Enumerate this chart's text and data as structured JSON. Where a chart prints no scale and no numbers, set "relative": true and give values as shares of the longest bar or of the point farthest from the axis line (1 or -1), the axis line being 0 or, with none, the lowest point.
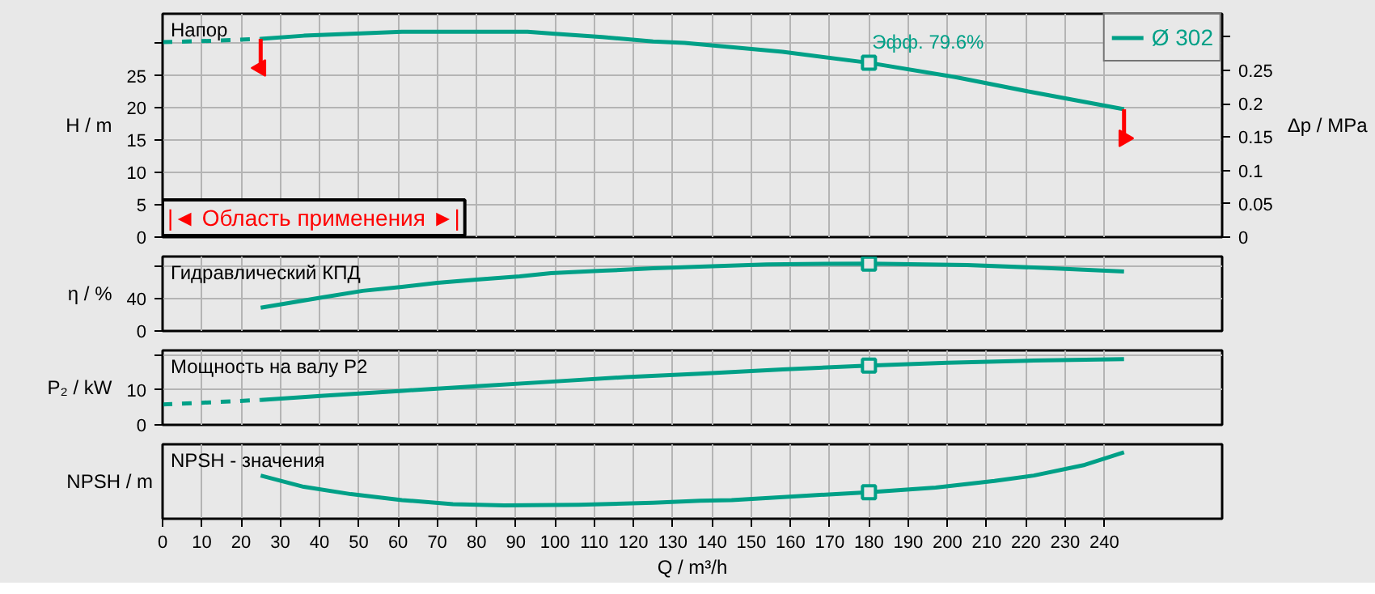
{
  "chart_data": [
    {
      "type": "line",
      "title": "Напор",
      "ylabel": "H / m",
      "y2label": "Δp / MPa",
      "xlim": [
        0,
        270
      ],
      "xticks": [
        0,
        10,
        20,
        30,
        40,
        50,
        60,
        70,
        80,
        90,
        100,
        110,
        120,
        130,
        140,
        150,
        160,
        170,
        180,
        190,
        200,
        210,
        220,
        230,
        240
      ],
      "ylim": [
        0,
        34.6
      ],
      "yticks": [
        0,
        5,
        10,
        15,
        20,
        25,
        {
          "value": 30,
          "label": null
        }
      ],
      "y2lim": [
        0,
        0.335
      ],
      "y2ticks": [
        0,
        0.05,
        0.1,
        0.15,
        0.2,
        0.25,
        {
          "value": 0.3,
          "label": null
        }
      ],
      "tick_labels": "y",
      "grid": true,
      "legend": "top right",
      "annotations": [
        {
          "text": "Эфф.  79.6%",
          "x": 180,
          "y": 27.0
        },
        "|◄ Область применения ►|"
      ],
      "series": [
        {
          "name": "Ø 302",
          "color": "#00a087",
          "x": [
            25,
            36,
            48,
            61,
            80,
            93,
            100,
            112,
            125,
            133,
            158,
            180,
            202,
            222,
            245
          ],
          "values": [
            30.7,
            31.2,
            31.5,
            31.8,
            31.8,
            31.8,
            31.5,
            31.0,
            30.3,
            30.1,
            28.7,
            27.0,
            24.8,
            22.4,
            19.8
          ]
        },
        {
          "color": "#00a087",
          "line_style": "dashed",
          "x": [
            0,
            12,
            25
          ],
          "values": [
            30.2,
            30.4,
            30.7
          ]
        },
        {
          "type": "scatter",
          "marker": "square",
          "color": "#00a087",
          "x": [
            180
          ],
          "values": [
            27.0
          ]
        },
        {
          "color": "#ff0000",
          "marker": "triangle",
          "x": [
            25,
            25
          ],
          "values": [
            30.7,
            26.2
          ]
        },
        {
          "color": "#ff0000",
          "marker": "triangle",
          "x": [
            245,
            245
          ],
          "values": [
            19.8,
            15.3
          ]
        }
      ]
    },
    {
      "type": "line",
      "title": "Гидравлический КПД",
      "ylabel": "η / %",
      "xlim": [
        0,
        270
      ],
      "xticks": [
        0,
        10,
        20,
        30,
        40,
        50,
        60,
        70,
        80,
        90,
        100,
        110,
        120,
        130,
        140,
        150,
        160,
        170,
        180,
        190,
        200,
        210,
        220,
        230,
        240
      ],
      "ylim": [
        0,
        92.7
      ],
      "yticks": [
        0,
        40,
        {
          "value": 80,
          "label": null
        }
      ],
      "tick_labels": "y",
      "grid": true,
      "series": [
        {
          "color": "#00a087",
          "x": [
            25,
            41,
            51,
            61,
            70,
            80,
            91,
            99,
            112,
            125,
            137,
            154,
            180,
            205,
            222,
            245
          ],
          "values": [
            29,
            42,
            50,
            55,
            60,
            64,
            68,
            72,
            75,
            78,
            80,
            83,
            84,
            82,
            79,
            74
          ]
        },
        {
          "type": "scatter",
          "marker": "square",
          "color": "#00a087",
          "x": [
            180
          ],
          "values": [
            84
          ]
        }
      ]
    },
    {
      "type": "line",
      "title": "Мощность на валу P2",
      "ylabel": "P₂ / kW",
      "xlim": [
        0,
        270
      ],
      "xticks": [
        0,
        10,
        20,
        30,
        40,
        50,
        60,
        70,
        80,
        90,
        100,
        110,
        120,
        130,
        140,
        150,
        160,
        170,
        180,
        190,
        200,
        210,
        220,
        230,
        240
      ],
      "ylim": [
        0,
        21.2
      ],
      "yticks": [
        0,
        10,
        {
          "value": 20,
          "label": null
        }
      ],
      "tick_labels": "y",
      "grid": true,
      "series": [
        {
          "color": "#00a087",
          "line_style": "dashed",
          "x": [
            0,
            12,
            25
          ],
          "values": [
            5.8,
            6.4,
            7.1
          ]
        },
        {
          "color": "#00a087",
          "x": [
            25,
            41,
            61,
            80,
            99,
            118,
            137,
            158,
            180,
            200,
            222,
            245
          ],
          "values": [
            7.1,
            8.3,
            9.7,
            11.0,
            12.3,
            13.6,
            14.6,
            15.8,
            16.9,
            17.7,
            18.3,
            18.7
          ]
        },
        {
          "type": "scatter",
          "marker": "square",
          "color": "#00a087",
          "x": [
            180
          ],
          "values": [
            16.9
          ]
        }
      ]
    },
    {
      "type": "line",
      "title": "NPSH - значения",
      "ylabel": "NPSH / m",
      "xlabel": "Q / m³/h",
      "relative": true,
      "xlim": [
        0,
        270
      ],
      "xticks": [
        0,
        10,
        20,
        30,
        40,
        50,
        60,
        70,
        80,
        90,
        100,
        110,
        120,
        130,
        140,
        150,
        160,
        170,
        180,
        190,
        200,
        210,
        220,
        230,
        240
      ],
      "tick_labels": "x",
      "grid": "x",
      "series": [
        {
          "color": "#00a087",
          "x": [
            25,
            36,
            48,
            61,
            74,
            87,
            106,
            125,
            137,
            145,
            165,
            180,
            197,
            212,
            222,
            235,
            245
          ],
          "values": [
            0.65,
            0.48,
            0.37,
            0.28,
            0.22,
            0.2,
            0.21,
            0.24,
            0.27,
            0.28,
            0.35,
            0.4,
            0.47,
            0.57,
            0.65,
            0.81,
            1
          ]
        },
        {
          "type": "scatter",
          "marker": "square",
          "color": "#00a087",
          "x": [
            180
          ],
          "values": [
            0.4
          ]
        }
      ]
    }
  ]
}
